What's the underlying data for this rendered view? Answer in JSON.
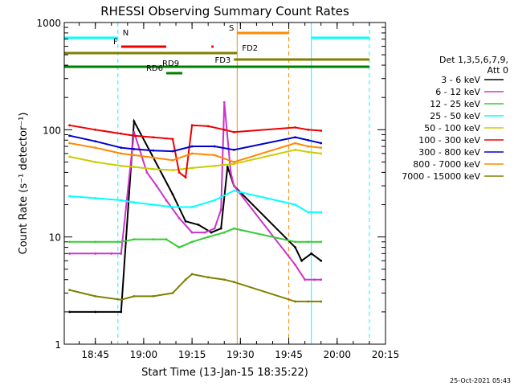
{
  "chart_data": {
    "type": "line",
    "title": "RHESSI Observing Summary Count Rates",
    "xlabel": "Start Time (13-Jan-15 18:35:22)",
    "ylabel": "Count Rate (s⁻¹ detector⁻¹)",
    "yscale": "log",
    "ylim": [
      1,
      1000
    ],
    "xlim": [
      "18:35:22",
      "20:15:00"
    ],
    "x_ticks": [
      "18:45",
      "19:00",
      "19:15",
      "19:30",
      "19:45",
      "20:00",
      "20:15"
    ],
    "y_ticks": [
      "1",
      "10",
      "100",
      "1000"
    ],
    "timestamp": "25-Oct-2021 05:43",
    "legend_title": [
      "Det 1,3,5,6,7,9,",
      "Att 0"
    ],
    "legend_position": "right",
    "series": [
      {
        "name": "3 - 6 keV",
        "color": "#000000",
        "x": [
          "18:37",
          "18:45",
          "18:53",
          "18:57",
          "19:03",
          "19:09",
          "19:13",
          "19:17",
          "19:21",
          "19:24",
          "19:26",
          "19:28",
          "19:47",
          "19:49",
          "19:52",
          "19:55"
        ],
        "values": [
          2.0,
          2.0,
          2.0,
          120,
          55,
          25,
          14,
          13,
          11,
          12,
          45,
          30,
          8,
          6,
          7,
          6
        ]
      },
      {
        "name": "6 - 12 keV",
        "color": "#cc33cc",
        "x": [
          "18:37",
          "18:45",
          "18:50",
          "18:53",
          "18:57",
          "19:01",
          "19:04",
          "19:07",
          "19:11",
          "19:15",
          "19:19",
          "19:22",
          "19:24",
          "19:25",
          "19:27",
          "19:28",
          "19:47",
          "19:50",
          "19:53",
          "19:55"
        ],
        "values": [
          7,
          7,
          7,
          7,
          95,
          40,
          30,
          22,
          15,
          11,
          11,
          12,
          18,
          180,
          40,
          30,
          5.5,
          4,
          4,
          4
        ]
      },
      {
        "name": "12 - 25 keV",
        "color": "#33cc33",
        "x": [
          "18:37",
          "18:45",
          "18:53",
          "18:57",
          "19:03",
          "19:07",
          "19:11",
          "19:15",
          "19:20",
          "19:25",
          "19:28",
          "19:47",
          "19:51",
          "19:55"
        ],
        "values": [
          9,
          9,
          9,
          9.5,
          9.5,
          9.5,
          8,
          9,
          10,
          11,
          12,
          9,
          9,
          9
        ]
      },
      {
        "name": "25 - 50 keV",
        "color": "#00ffff",
        "x": [
          "18:37",
          "18:45",
          "18:53",
          "18:57",
          "19:03",
          "19:09",
          "19:15",
          "19:22",
          "19:28",
          "19:47",
          "19:51",
          "19:55"
        ],
        "values": [
          24,
          23,
          22,
          21,
          20,
          19,
          19,
          22,
          27,
          20,
          17,
          17
        ]
      },
      {
        "name": "50 - 100 keV",
        "color": "#cccc00",
        "x": [
          "18:37",
          "18:45",
          "18:53",
          "18:57",
          "19:03",
          "19:09",
          "19:15",
          "19:22",
          "19:28",
          "19:47",
          "19:51",
          "19:55"
        ],
        "values": [
          56,
          50,
          46,
          45,
          43,
          42,
          44,
          46,
          48,
          65,
          62,
          60
        ]
      },
      {
        "name": "100 - 300 keV",
        "color": "#ee0000",
        "x": [
          "18:37",
          "18:45",
          "18:53",
          "18:57",
          "19:03",
          "19:09",
          "19:11",
          "19:13",
          "19:15",
          "19:20",
          "19:25",
          "19:28",
          "19:47",
          "19:51",
          "19:55"
        ],
        "values": [
          110,
          100,
          92,
          88,
          85,
          82,
          40,
          36,
          110,
          108,
          100,
          95,
          105,
          100,
          98
        ]
      },
      {
        "name": "300 - 800 keV",
        "color": "#0000cc",
        "x": [
          "18:37",
          "18:45",
          "18:53",
          "18:57",
          "19:03",
          "19:09",
          "19:15",
          "19:22",
          "19:28",
          "19:47",
          "19:51",
          "19:55"
        ],
        "values": [
          88,
          78,
          68,
          66,
          64,
          63,
          70,
          70,
          65,
          85,
          80,
          75
        ]
      },
      {
        "name": "800 - 7000 keV",
        "color": "#ff8800",
        "x": [
          "18:37",
          "18:45",
          "18:53",
          "18:57",
          "19:03",
          "19:09",
          "19:15",
          "19:22",
          "19:28",
          "19:47",
          "19:51",
          "19:55"
        ],
        "values": [
          75,
          68,
          60,
          58,
          55,
          52,
          60,
          58,
          50,
          75,
          70,
          68
        ]
      },
      {
        "name": "7000 - 15000 keV",
        "color": "#808000",
        "x": [
          "18:37",
          "18:45",
          "18:53",
          "18:57",
          "19:03",
          "19:09",
          "19:13",
          "19:15",
          "19:20",
          "19:25",
          "19:28",
          "19:47",
          "19:51",
          "19:55"
        ],
        "values": [
          3.2,
          2.8,
          2.6,
          2.8,
          2.8,
          3,
          4,
          4.5,
          4.2,
          4,
          3.8,
          2.5,
          2.5,
          2.5
        ]
      }
    ],
    "status_bars": [
      {
        "label": "N",
        "color": "#00ffff",
        "start": "18:35:22",
        "end": "18:52"
      },
      {
        "label": "",
        "color": "#00ffff",
        "start": "19:52",
        "end": "20:10"
      },
      {
        "label": "F",
        "color": "#ee0000",
        "start": "18:53",
        "end": "19:07"
      },
      {
        "label": "",
        "color": "#ee0000",
        "start": "19:21",
        "end": "19:21:40"
      },
      {
        "label": "S",
        "color": "#ff8800",
        "start": "19:29",
        "end": "19:45"
      },
      {
        "label": "FD2",
        "color": "#808000",
        "start": "18:35:22",
        "end": "19:29"
      },
      {
        "label": "FD3",
        "color": "#808000",
        "start": "19:28",
        "end": "20:10"
      },
      {
        "label": "RD9",
        "color": "#008000",
        "start": "18:35:22",
        "end": "20:10"
      },
      {
        "label": "RD6",
        "color": "#008000",
        "start": "19:07",
        "end": "19:12"
      }
    ],
    "vertical_markers": [
      {
        "time": "18:52",
        "color": "#00ffff",
        "style": "dashed"
      },
      {
        "time": "19:29",
        "color": "#ff8800",
        "style": "solid"
      },
      {
        "time": "19:45",
        "color": "#ff8800",
        "style": "dashed"
      },
      {
        "time": "19:52",
        "color": "#00ffff",
        "style": "solid"
      },
      {
        "time": "20:10",
        "color": "#00ffff",
        "style": "dashed"
      }
    ],
    "grid": false
  }
}
